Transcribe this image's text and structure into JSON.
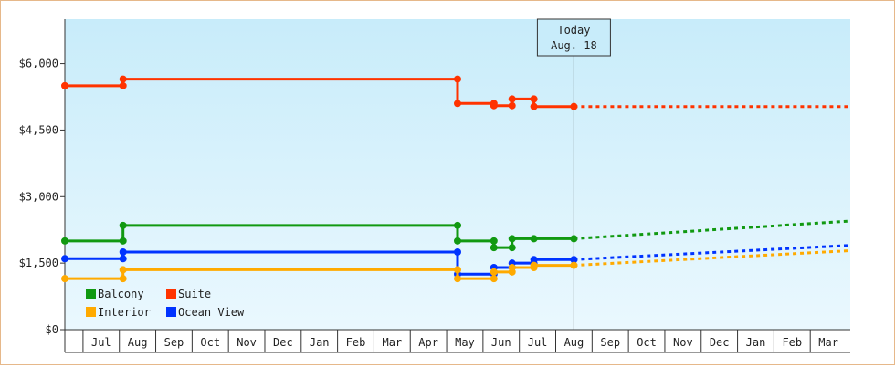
{
  "chart_data": {
    "type": "line",
    "title": "",
    "xlabel": "",
    "ylabel": "",
    "ylim": [
      0,
      7000
    ],
    "y_ticks": [
      {
        "value": 0,
        "label": "$0"
      },
      {
        "value": 1500,
        "label": "$1,500"
      },
      {
        "value": 3000,
        "label": "$3,000"
      },
      {
        "value": 4500,
        "label": "$4,500"
      },
      {
        "value": 6000,
        "label": "$6,000"
      }
    ],
    "x_range": [
      0,
      21.6
    ],
    "month_labels": [
      {
        "label": "Jul",
        "pos": 1
      },
      {
        "label": "Aug",
        "pos": 2
      },
      {
        "label": "Sep",
        "pos": 3
      },
      {
        "label": "Oct",
        "pos": 4
      },
      {
        "label": "Nov",
        "pos": 5
      },
      {
        "label": "Dec",
        "pos": 6
      },
      {
        "label": "Jan",
        "pos": 7
      },
      {
        "label": "Feb",
        "pos": 8
      },
      {
        "label": "Mar",
        "pos": 9
      },
      {
        "label": "Apr",
        "pos": 10
      },
      {
        "label": "May",
        "pos": 11
      },
      {
        "label": "Jun",
        "pos": 12
      },
      {
        "label": "Jul",
        "pos": 13
      },
      {
        "label": "Aug",
        "pos": 14
      },
      {
        "label": "Sep",
        "pos": 15
      },
      {
        "label": "Oct",
        "pos": 16
      },
      {
        "label": "Nov",
        "pos": 17
      },
      {
        "label": "Dec",
        "pos": 18
      },
      {
        "label": "Jan",
        "pos": 19
      },
      {
        "label": "Feb",
        "pos": 20
      },
      {
        "label": "Mar",
        "pos": 21
      }
    ],
    "today": {
      "line1": "Today",
      "line2": "Aug. 18",
      "x": 14
    },
    "series": [
      {
        "name": "Suite",
        "color": "#ff3300",
        "points": [
          [
            0.0,
            5500
          ],
          [
            1.6,
            5500
          ],
          [
            1.6,
            5650
          ],
          [
            10.8,
            5650
          ],
          [
            10.8,
            5100
          ],
          [
            11.8,
            5100
          ],
          [
            11.8,
            5050
          ],
          [
            12.3,
            5050
          ],
          [
            12.3,
            5200
          ],
          [
            12.9,
            5200
          ],
          [
            12.9,
            5030
          ],
          [
            14.0,
            5030
          ]
        ],
        "markers": [
          [
            0.0,
            5500
          ],
          [
            1.6,
            5500
          ],
          [
            1.6,
            5650
          ],
          [
            10.8,
            5650
          ],
          [
            10.8,
            5100
          ],
          [
            11.8,
            5100
          ],
          [
            11.8,
            5050
          ],
          [
            12.3,
            5050
          ],
          [
            12.3,
            5200
          ],
          [
            12.9,
            5200
          ],
          [
            12.9,
            5030
          ],
          [
            14.0,
            5030
          ]
        ],
        "forecast": [
          [
            14.0,
            5030
          ],
          [
            21.6,
            5030
          ]
        ]
      },
      {
        "name": "Balcony",
        "color": "#119911",
        "points": [
          [
            0.0,
            2000
          ],
          [
            1.6,
            2000
          ],
          [
            1.6,
            2350
          ],
          [
            10.8,
            2350
          ],
          [
            10.8,
            2000
          ],
          [
            11.8,
            2000
          ],
          [
            11.8,
            1850
          ],
          [
            12.3,
            1850
          ],
          [
            12.3,
            2050
          ],
          [
            12.9,
            2050
          ],
          [
            14.0,
            2050
          ]
        ],
        "markers": [
          [
            0.0,
            2000
          ],
          [
            1.6,
            2000
          ],
          [
            1.6,
            2350
          ],
          [
            10.8,
            2350
          ],
          [
            10.8,
            2000
          ],
          [
            11.8,
            2000
          ],
          [
            11.8,
            1850
          ],
          [
            12.3,
            1850
          ],
          [
            12.3,
            2050
          ],
          [
            12.9,
            2050
          ],
          [
            14.0,
            2050
          ]
        ],
        "forecast": [
          [
            14.0,
            2050
          ],
          [
            21.6,
            2450
          ]
        ]
      },
      {
        "name": "Ocean View",
        "color": "#0033ff",
        "points": [
          [
            0.0,
            1600
          ],
          [
            1.6,
            1600
          ],
          [
            1.6,
            1750
          ],
          [
            10.8,
            1750
          ],
          [
            10.8,
            1250
          ],
          [
            11.8,
            1250
          ],
          [
            11.8,
            1400
          ],
          [
            12.3,
            1400
          ],
          [
            12.3,
            1500
          ],
          [
            12.9,
            1500
          ],
          [
            12.9,
            1580
          ],
          [
            14.0,
            1580
          ]
        ],
        "markers": [
          [
            0.0,
            1600
          ],
          [
            1.6,
            1600
          ],
          [
            1.6,
            1750
          ],
          [
            10.8,
            1750
          ],
          [
            10.8,
            1250
          ],
          [
            11.8,
            1250
          ],
          [
            11.8,
            1400
          ],
          [
            12.3,
            1400
          ],
          [
            12.3,
            1500
          ],
          [
            12.9,
            1500
          ],
          [
            12.9,
            1580
          ],
          [
            14.0,
            1580
          ]
        ],
        "forecast": [
          [
            14.0,
            1580
          ],
          [
            21.6,
            1900
          ]
        ]
      },
      {
        "name": "Interior",
        "color": "#ffaa00",
        "points": [
          [
            0.0,
            1150
          ],
          [
            1.6,
            1150
          ],
          [
            1.6,
            1350
          ],
          [
            10.8,
            1350
          ],
          [
            10.8,
            1150
          ],
          [
            11.8,
            1150
          ],
          [
            11.8,
            1300
          ],
          [
            12.3,
            1300
          ],
          [
            12.3,
            1400
          ],
          [
            12.9,
            1400
          ],
          [
            12.9,
            1450
          ],
          [
            14.0,
            1450
          ]
        ],
        "markers": [
          [
            0.0,
            1150
          ],
          [
            1.6,
            1150
          ],
          [
            1.6,
            1350
          ],
          [
            10.8,
            1350
          ],
          [
            10.8,
            1150
          ],
          [
            11.8,
            1150
          ],
          [
            11.8,
            1300
          ],
          [
            12.3,
            1300
          ],
          [
            12.3,
            1400
          ],
          [
            12.9,
            1400
          ],
          [
            12.9,
            1450
          ],
          [
            14.0,
            1450
          ]
        ],
        "forecast": [
          [
            14.0,
            1450
          ],
          [
            21.6,
            1780
          ]
        ]
      }
    ],
    "legend": [
      {
        "name": "Balcony",
        "color": "#119911"
      },
      {
        "name": "Suite",
        "color": "#ff3300"
      },
      {
        "name": "Interior",
        "color": "#ffaa00"
      },
      {
        "name": "Ocean View",
        "color": "#0033ff"
      }
    ],
    "legend_position": "bottom-left",
    "grid": false
  }
}
